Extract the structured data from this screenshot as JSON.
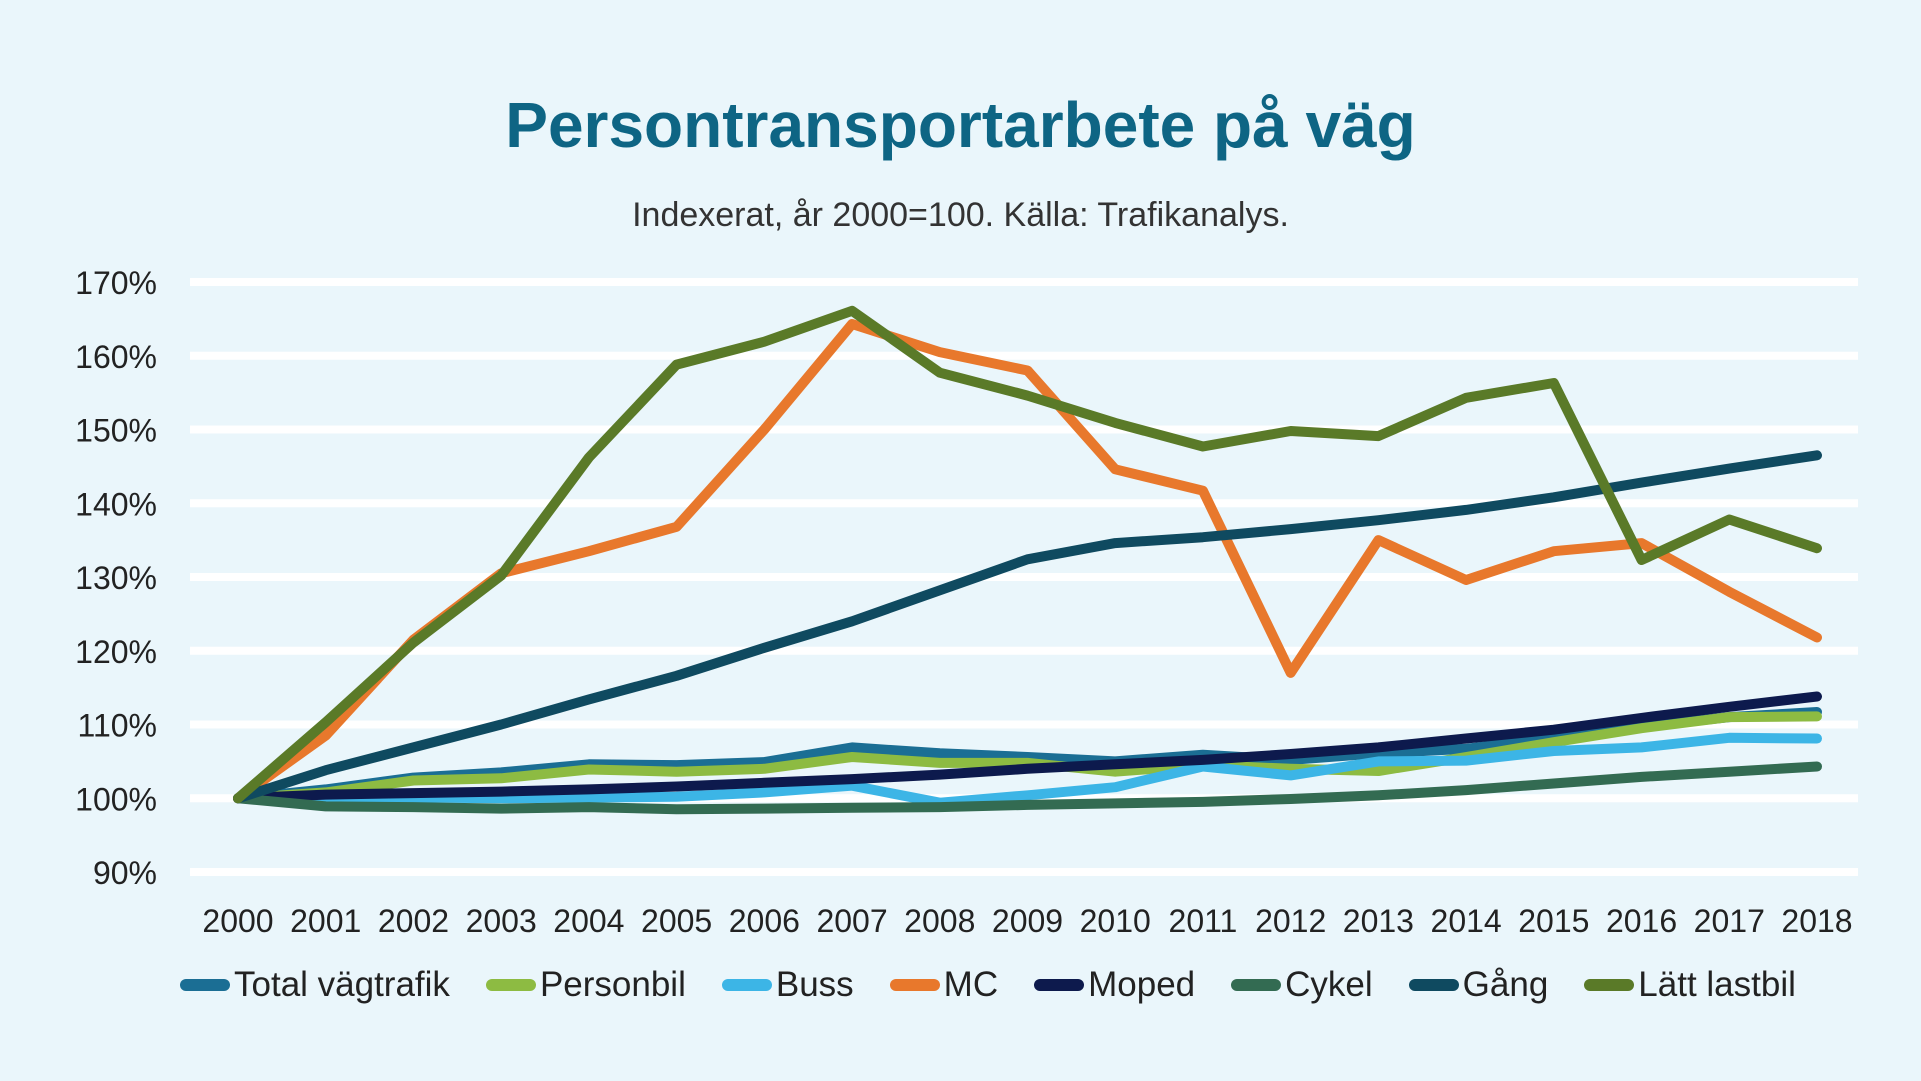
{
  "chart_data": {
    "type": "line",
    "title": "Persontransportarbete på väg",
    "subtitle": "Indexerat, år 2000=100. Källa: Trafikanalys.",
    "xlabel": "",
    "ylabel": "",
    "ylim": [
      90,
      170
    ],
    "y_ticks": [
      "90%",
      "100%",
      "110%",
      "120%",
      "130%",
      "140%",
      "150%",
      "160%",
      "170%"
    ],
    "grid": "horizontal",
    "legend_position": "bottom",
    "categories": [
      "2000",
      "2001",
      "2002",
      "2003",
      "2004",
      "2005",
      "2006",
      "2007",
      "2008",
      "2009",
      "2010",
      "2011",
      "2012",
      "2013",
      "2014",
      "2015",
      "2016",
      "2017",
      "2018"
    ],
    "series": [
      {
        "name": "Total vägtrafik",
        "color": "#1b6e94",
        "values": [
          100,
          101.2,
          102.8,
          103.5,
          104.6,
          104.5,
          104.9,
          106.9,
          106.1,
          105.6,
          105,
          105.9,
          105.2,
          106.1,
          106.7,
          108.2,
          109.7,
          111,
          111.7
        ]
      },
      {
        "name": "Personbil",
        "color": "#8dbb42",
        "values": [
          100,
          100.8,
          102.4,
          102.7,
          103.9,
          103.6,
          104,
          105.6,
          104.8,
          104.8,
          103.6,
          104.5,
          104,
          103.7,
          105.6,
          107.6,
          109.5,
          111,
          111.1
        ]
      },
      {
        "name": "Buss",
        "color": "#3cb5e6",
        "values": [
          100,
          100.2,
          100.1,
          100,
          100.1,
          100.2,
          100.8,
          101.7,
          99.4,
          100.4,
          101.5,
          104.3,
          103.1,
          105,
          105.1,
          106.4,
          106.9,
          108.2,
          108.1
        ]
      },
      {
        "name": "MC",
        "color": "#e8782c",
        "values": [
          100,
          108.5,
          121.5,
          130.5,
          133.5,
          136.8,
          150,
          164.3,
          160.5,
          158,
          144.6,
          141.7,
          117,
          135,
          129.6,
          133.5,
          134.6,
          128,
          121.8
        ]
      },
      {
        "name": "Moped",
        "color": "#0d1a4d",
        "values": [
          100,
          100.5,
          100.7,
          100.9,
          101.2,
          101.6,
          102.1,
          102.6,
          103.2,
          104,
          104.6,
          105.2,
          106,
          106.9,
          108.1,
          109.3,
          110.9,
          112.4,
          113.8
        ]
      },
      {
        "name": "Cykel",
        "color": "#336b52",
        "values": [
          100,
          98.9,
          98.8,
          98.6,
          98.8,
          98.5,
          98.6,
          98.7,
          98.8,
          99.1,
          99.3,
          99.5,
          99.9,
          100.4,
          101.1,
          102,
          102.9,
          103.6,
          104.3
        ]
      },
      {
        "name": "Gång",
        "color": "#0f4a60",
        "values": [
          100,
          103.8,
          106.9,
          110,
          113.4,
          116.6,
          120.4,
          124,
          128.2,
          132.4,
          134.6,
          135.4,
          136.5,
          137.7,
          139.1,
          140.8,
          142.8,
          144.7,
          146.5
        ]
      },
      {
        "name": "Lätt lastbil",
        "color": "#5a7a28",
        "values": [
          100,
          110.3,
          121.1,
          130.2,
          146.2,
          158.8,
          161.9,
          166.1,
          157.7,
          154.6,
          150.9,
          147.7,
          149.8,
          149.1,
          154.3,
          156.3,
          132.3,
          137.8,
          133.9
        ]
      }
    ]
  }
}
